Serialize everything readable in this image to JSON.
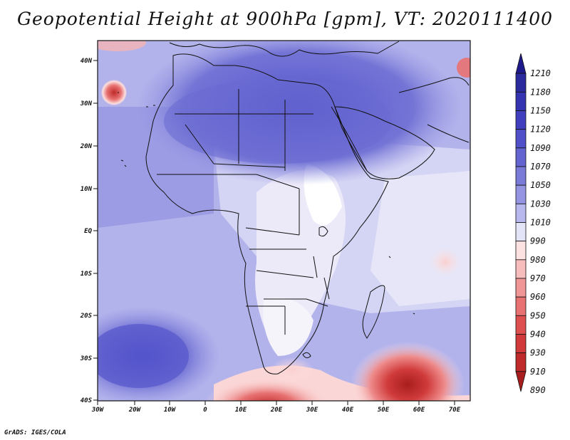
{
  "title": "Geopotential Height at 900hPa [gpm], VT: 2020111400",
  "footer": "GrADS: IGES/COLA",
  "map": {
    "variable": "Geopotential Height",
    "level": "900hPa",
    "units": "gpm",
    "valid_time": "2020111400",
    "lon_labels": [
      "30W",
      "20W",
      "10W",
      "0",
      "10E",
      "20E",
      "30E",
      "40E",
      "50E",
      "60E",
      "70E"
    ],
    "lat_labels": [
      "40N",
      "30N",
      "20N",
      "10N",
      "EQ",
      "10S",
      "20S",
      "30S",
      "40S"
    ],
    "features": {
      "high_center": "Mediterranean / North Africa",
      "low_south_atlantic": "30W 32N",
      "low_south_indian_ocean": "58E 39S",
      "low_south_africa_coast": "20E 38S"
    }
  },
  "colorbar": {
    "levels": [
      "1210",
      "1180",
      "1150",
      "1120",
      "1090",
      "1070",
      "1050",
      "1030",
      "1010",
      "990",
      "980",
      "970",
      "960",
      "950",
      "940",
      "930",
      "910",
      "890"
    ],
    "colors": [
      "#1f1a8c",
      "#2b2b9e",
      "#3434b0",
      "#4040bf",
      "#5050c8",
      "#6464d0",
      "#7a7ad8",
      "#9494e2",
      "#b8b8ee",
      "#e4e4f8",
      "#fde2e2",
      "#f7bcbc",
      "#f09696",
      "#e87272",
      "#de5050",
      "#d03a3a",
      "#bf2a2a",
      "#a81e1e"
    ]
  }
}
